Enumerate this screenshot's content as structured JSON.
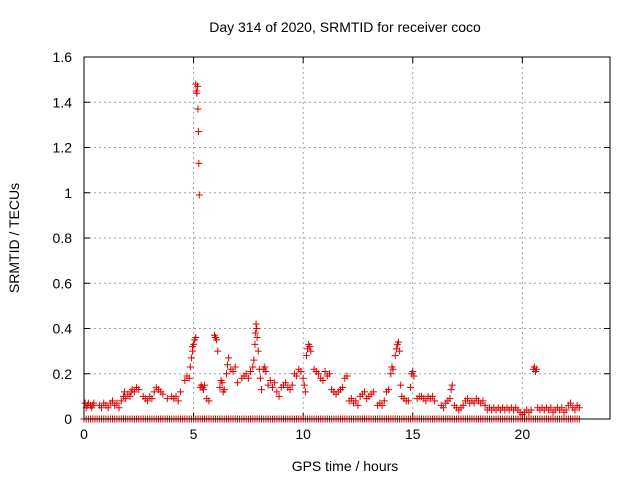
{
  "chart_data": {
    "type": "scatter",
    "title": "Day 314 of 2020, SRMTID for receiver coco",
    "xlabel": "GPS time / hours",
    "ylabel": "SRMTID / TECUs",
    "xlim": [
      0,
      24
    ],
    "ylim": [
      0,
      1.6
    ],
    "xticks": [
      0,
      5,
      10,
      15,
      20
    ],
    "yticks": [
      0,
      0.2,
      0.4,
      0.6,
      0.8,
      1,
      1.2,
      1.4,
      1.6
    ],
    "ytick_labels": [
      "0",
      "0.2",
      "0.4",
      "0.6",
      "0.8",
      "1",
      "1.2",
      "1.4",
      "1.6"
    ],
    "grid": true,
    "marker": "+",
    "color": "#e00000",
    "baseline": {
      "y": 0,
      "x_start": 0,
      "x_end": 22.6,
      "step": 0.1
    },
    "series": [
      {
        "name": "SRMTID",
        "points": [
          [
            0.05,
            0.07
          ],
          [
            0.1,
            0.05
          ],
          [
            0.15,
            0.06
          ],
          [
            0.2,
            0.07
          ],
          [
            0.3,
            0.06
          ],
          [
            0.35,
            0.05
          ],
          [
            0.4,
            0.06
          ],
          [
            0.45,
            0.07
          ],
          [
            0.7,
            0.06
          ],
          [
            0.8,
            0.05
          ],
          [
            0.9,
            0.07
          ],
          [
            1.0,
            0.06
          ],
          [
            1.1,
            0.05
          ],
          [
            1.2,
            0.07
          ],
          [
            1.3,
            0.08
          ],
          [
            1.4,
            0.06
          ],
          [
            1.5,
            0.07
          ],
          [
            1.6,
            0.05
          ],
          [
            1.7,
            0.08
          ],
          [
            1.8,
            0.1
          ],
          [
            1.85,
            0.12
          ],
          [
            1.9,
            0.09
          ],
          [
            2.0,
            0.11
          ],
          [
            2.1,
            0.1
          ],
          [
            2.15,
            0.12
          ],
          [
            2.2,
            0.13
          ],
          [
            2.3,
            0.12
          ],
          [
            2.4,
            0.14
          ],
          [
            2.5,
            0.13
          ],
          [
            2.7,
            0.1
          ],
          [
            2.8,
            0.09
          ],
          [
            2.9,
            0.08
          ],
          [
            3.0,
            0.1
          ],
          [
            3.1,
            0.09
          ],
          [
            3.2,
            0.12
          ],
          [
            3.3,
            0.14
          ],
          [
            3.4,
            0.13
          ],
          [
            3.5,
            0.12
          ],
          [
            3.6,
            0.11
          ],
          [
            3.8,
            0.09
          ],
          [
            4.0,
            0.1
          ],
          [
            4.1,
            0.09
          ],
          [
            4.2,
            0.1
          ],
          [
            4.3,
            0.08
          ],
          [
            4.4,
            0.12
          ],
          [
            4.6,
            0.17
          ],
          [
            4.7,
            0.19
          ],
          [
            4.8,
            0.18
          ],
          [
            4.85,
            0.23
          ],
          [
            4.9,
            0.27
          ],
          [
            4.95,
            0.3
          ],
          [
            5.0,
            0.33
          ],
          [
            5.05,
            0.35
          ],
          [
            5.1,
            0.36
          ],
          [
            4.95,
            0.32
          ],
          [
            5.1,
            1.48
          ],
          [
            5.12,
            1.45
          ],
          [
            5.15,
            1.44
          ],
          [
            5.18,
            1.47
          ],
          [
            5.2,
            1.37
          ],
          [
            5.22,
            1.27
          ],
          [
            5.24,
            1.13
          ],
          [
            5.26,
            0.99
          ],
          [
            5.3,
            0.14
          ],
          [
            5.35,
            0.15
          ],
          [
            5.4,
            0.14
          ],
          [
            5.45,
            0.13
          ],
          [
            5.5,
            0.15
          ],
          [
            5.6,
            0.09
          ],
          [
            5.7,
            0.08
          ],
          [
            5.95,
            0.37
          ],
          [
            6.0,
            0.36
          ],
          [
            6.05,
            0.35
          ],
          [
            6.1,
            0.3
          ],
          [
            6.2,
            0.14
          ],
          [
            6.25,
            0.17
          ],
          [
            6.3,
            0.16
          ],
          [
            6.35,
            0.12
          ],
          [
            6.4,
            0.13
          ],
          [
            6.5,
            0.2
          ],
          [
            6.55,
            0.24
          ],
          [
            6.6,
            0.27
          ],
          [
            6.7,
            0.22
          ],
          [
            6.8,
            0.21
          ],
          [
            6.9,
            0.23
          ],
          [
            7.0,
            0.16
          ],
          [
            7.2,
            0.18
          ],
          [
            7.3,
            0.19
          ],
          [
            7.4,
            0.2
          ],
          [
            7.5,
            0.18
          ],
          [
            7.6,
            0.21
          ],
          [
            7.7,
            0.23
          ],
          [
            7.75,
            0.26
          ],
          [
            7.8,
            0.33
          ],
          [
            7.82,
            0.38
          ],
          [
            7.85,
            0.42
          ],
          [
            7.88,
            0.4
          ],
          [
            7.9,
            0.36
          ],
          [
            7.95,
            0.3
          ],
          [
            8.0,
            0.22
          ],
          [
            8.05,
            0.18
          ],
          [
            8.1,
            0.13
          ],
          [
            8.2,
            0.22
          ],
          [
            8.25,
            0.23
          ],
          [
            8.3,
            0.21
          ],
          [
            8.4,
            0.15
          ],
          [
            8.5,
            0.17
          ],
          [
            8.6,
            0.14
          ],
          [
            8.7,
            0.16
          ],
          [
            8.8,
            0.12
          ],
          [
            8.9,
            0.1
          ],
          [
            9.0,
            0.14
          ],
          [
            9.1,
            0.15
          ],
          [
            9.2,
            0.16
          ],
          [
            9.3,
            0.14
          ],
          [
            9.4,
            0.13
          ],
          [
            9.5,
            0.15
          ],
          [
            9.6,
            0.2
          ],
          [
            9.7,
            0.19
          ],
          [
            9.8,
            0.22
          ],
          [
            9.9,
            0.21
          ],
          [
            10.0,
            0.18
          ],
          [
            10.05,
            0.15
          ],
          [
            10.1,
            0.12
          ],
          [
            10.15,
            0.28
          ],
          [
            10.2,
            0.31
          ],
          [
            10.25,
            0.33
          ],
          [
            10.3,
            0.32
          ],
          [
            10.35,
            0.3
          ],
          [
            10.5,
            0.22
          ],
          [
            10.6,
            0.21
          ],
          [
            10.7,
            0.2
          ],
          [
            10.8,
            0.18
          ],
          [
            10.9,
            0.17
          ],
          [
            11.0,
            0.21
          ],
          [
            11.1,
            0.19
          ],
          [
            11.2,
            0.2
          ],
          [
            11.3,
            0.13
          ],
          [
            11.4,
            0.12
          ],
          [
            11.5,
            0.11
          ],
          [
            11.6,
            0.12
          ],
          [
            11.7,
            0.13
          ],
          [
            11.8,
            0.14
          ],
          [
            11.9,
            0.18
          ],
          [
            12.0,
            0.19
          ],
          [
            12.1,
            0.08
          ],
          [
            12.2,
            0.09
          ],
          [
            12.3,
            0.07
          ],
          [
            12.4,
            0.08
          ],
          [
            12.5,
            0.06
          ],
          [
            12.6,
            0.1
          ],
          [
            12.7,
            0.11
          ],
          [
            12.8,
            0.12
          ],
          [
            12.9,
            0.09
          ],
          [
            13.0,
            0.1
          ],
          [
            13.1,
            0.11
          ],
          [
            13.2,
            0.12
          ],
          [
            13.4,
            0.06
          ],
          [
            13.5,
            0.07
          ],
          [
            13.6,
            0.06
          ],
          [
            13.7,
            0.08
          ],
          [
            13.8,
            0.12
          ],
          [
            13.9,
            0.13
          ],
          [
            14.0,
            0.2
          ],
          [
            14.05,
            0.23
          ],
          [
            14.1,
            0.22
          ],
          [
            14.2,
            0.28
          ],
          [
            14.25,
            0.31
          ],
          [
            14.3,
            0.33
          ],
          [
            14.35,
            0.34
          ],
          [
            14.4,
            0.3
          ],
          [
            14.45,
            0.15
          ],
          [
            14.5,
            0.1
          ],
          [
            14.6,
            0.09
          ],
          [
            14.7,
            0.08
          ],
          [
            14.8,
            0.08
          ],
          [
            14.9,
            0.14
          ],
          [
            14.95,
            0.2
          ],
          [
            15.0,
            0.21
          ],
          [
            15.05,
            0.19
          ],
          [
            15.2,
            0.09
          ],
          [
            15.3,
            0.1
          ],
          [
            15.4,
            0.1
          ],
          [
            15.5,
            0.09
          ],
          [
            15.6,
            0.08
          ],
          [
            15.7,
            0.1
          ],
          [
            15.8,
            0.09
          ],
          [
            15.9,
            0.1
          ],
          [
            16.0,
            0.08
          ],
          [
            16.3,
            0.06
          ],
          [
            16.4,
            0.05
          ],
          [
            16.5,
            0.07
          ],
          [
            16.6,
            0.08
          ],
          [
            16.7,
            0.09
          ],
          [
            16.75,
            0.13
          ],
          [
            16.8,
            0.15
          ],
          [
            16.9,
            0.06
          ],
          [
            17.0,
            0.05
          ],
          [
            17.1,
            0.04
          ],
          [
            17.2,
            0.05
          ],
          [
            17.3,
            0.06
          ],
          [
            17.4,
            0.08
          ],
          [
            17.5,
            0.09
          ],
          [
            17.6,
            0.07
          ],
          [
            17.7,
            0.08
          ],
          [
            17.8,
            0.07
          ],
          [
            17.9,
            0.09
          ],
          [
            18.0,
            0.08
          ],
          [
            18.1,
            0.07
          ],
          [
            18.2,
            0.08
          ],
          [
            18.3,
            0.06
          ],
          [
            18.4,
            0.04
          ],
          [
            18.5,
            0.05
          ],
          [
            18.6,
            0.04
          ],
          [
            18.7,
            0.05
          ],
          [
            18.8,
            0.04
          ],
          [
            18.9,
            0.05
          ],
          [
            19.0,
            0.04
          ],
          [
            19.1,
            0.05
          ],
          [
            19.2,
            0.04
          ],
          [
            19.3,
            0.05
          ],
          [
            19.4,
            0.04
          ],
          [
            19.5,
            0.05
          ],
          [
            19.6,
            0.04
          ],
          [
            19.7,
            0.05
          ],
          [
            19.8,
            0.04
          ],
          [
            19.9,
            0.03
          ],
          [
            20.0,
            0.02
          ],
          [
            20.1,
            0.03
          ],
          [
            20.2,
            0.04
          ],
          [
            20.3,
            0.03
          ],
          [
            20.4,
            0.04
          ],
          [
            20.5,
            0.22
          ],
          [
            20.55,
            0.23
          ],
          [
            20.6,
            0.21
          ],
          [
            20.65,
            0.22
          ],
          [
            20.7,
            0.05
          ],
          [
            20.8,
            0.04
          ],
          [
            20.9,
            0.05
          ],
          [
            21.0,
            0.04
          ],
          [
            21.1,
            0.05
          ],
          [
            21.2,
            0.04
          ],
          [
            21.3,
            0.05
          ],
          [
            21.4,
            0.03
          ],
          [
            21.5,
            0.04
          ],
          [
            21.6,
            0.05
          ],
          [
            21.7,
            0.04
          ],
          [
            21.8,
            0.05
          ],
          [
            21.9,
            0.03
          ],
          [
            22.0,
            0.04
          ],
          [
            22.1,
            0.06
          ],
          [
            22.2,
            0.07
          ],
          [
            22.3,
            0.05
          ],
          [
            22.4,
            0.04
          ],
          [
            22.5,
            0.06
          ],
          [
            22.6,
            0.05
          ]
        ]
      }
    ]
  }
}
